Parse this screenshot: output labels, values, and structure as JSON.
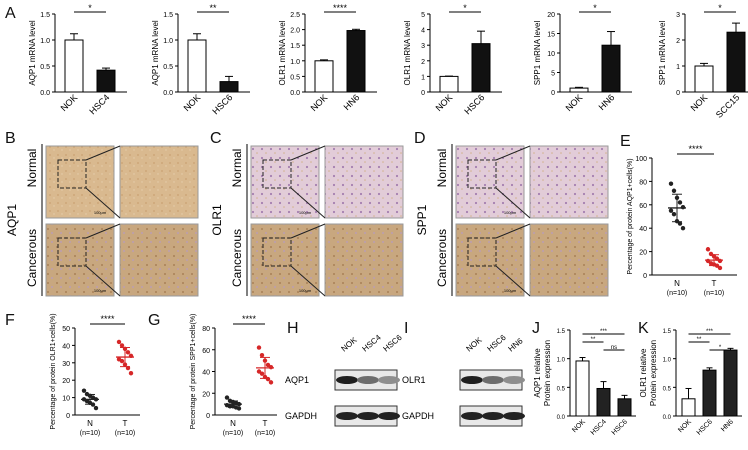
{
  "panels": {
    "A": "A",
    "B": "B",
    "C": "C",
    "D": "D",
    "E": "E",
    "F": "F",
    "G": "G",
    "H": "H",
    "I": "I",
    "J": "J",
    "K": "K"
  },
  "bar_charts_A": [
    {
      "ylabel": "AQP1 mRNA level",
      "yticks": [
        "0.0",
        "0.5",
        "1.0",
        "1.5"
      ],
      "ymax": 1.5,
      "categories": [
        "NOK",
        "HSC4"
      ],
      "values": [
        1.0,
        0.42
      ],
      "errors": [
        0.12,
        0.04
      ],
      "sig": "*"
    },
    {
      "ylabel": "AQP1 mRNA level",
      "yticks": [
        "0.0",
        "0.5",
        "1.0",
        "1.5"
      ],
      "ymax": 1.5,
      "categories": [
        "NOK",
        "HSC6"
      ],
      "values": [
        1.0,
        0.2
      ],
      "errors": [
        0.12,
        0.1
      ],
      "sig": "**"
    },
    {
      "ylabel": "OLR1 mRNA level",
      "yticks": [
        "0.0",
        "0.5",
        "1.0",
        "1.5",
        "2.0",
        "2.5"
      ],
      "ymax": 2.5,
      "categories": [
        "NOK",
        "HN6"
      ],
      "values": [
        1.0,
        1.97
      ],
      "errors": [
        0.03,
        0.04
      ],
      "sig": "****"
    },
    {
      "ylabel": "OLR1 mRNA level",
      "yticks": [
        "0",
        "1",
        "2",
        "3",
        "4",
        "5"
      ],
      "ymax": 5,
      "categories": [
        "NOK",
        "HSC6"
      ],
      "values": [
        1.0,
        3.1
      ],
      "errors": [
        0.02,
        0.8
      ],
      "sig": "*"
    },
    {
      "ylabel": "SPP1 mRNA level",
      "yticks": [
        "0",
        "5",
        "10",
        "15",
        "20"
      ],
      "ymax": 20,
      "categories": [
        "NOK",
        "HN6"
      ],
      "values": [
        1.0,
        12.0
      ],
      "errors": [
        0.2,
        3.5
      ],
      "sig": "*"
    },
    {
      "ylabel": "SPP1 mRNA level",
      "yticks": [
        "0",
        "1",
        "2",
        "3"
      ],
      "ymax": 3,
      "categories": [
        "NOK",
        "SCC15"
      ],
      "values": [
        1.0,
        2.3
      ],
      "errors": [
        0.1,
        0.35
      ],
      "sig": "*"
    }
  ],
  "ihc": {
    "B": {
      "marker": "AQP1"
    },
    "C": {
      "marker": "OLR1"
    },
    "D": {
      "marker": "SPP1"
    },
    "row_normal": "Normal",
    "row_cancerous": "Cancerous",
    "scale": "100μm"
  },
  "scatter_charts": [
    {
      "panel": "E",
      "ylabel": "Percentage of protein AQP1+cells(%)",
      "yticks": [
        "0",
        "20",
        "40",
        "60",
        "80",
        "100"
      ],
      "ymax": 100,
      "groups": [
        "N",
        "T"
      ],
      "ns": [
        "(n=10)",
        "(n=10)"
      ],
      "sig": "****",
      "N": [
        78,
        72,
        66,
        62,
        58,
        55,
        52,
        46,
        44,
        40
      ],
      "T": [
        22,
        18,
        16,
        14,
        12,
        12,
        10,
        9,
        8,
        6
      ],
      "colors": [
        "#222222",
        "#d62728"
      ]
    },
    {
      "panel": "F",
      "ylabel": "Percentage of protein OLR1+cells(%)",
      "yticks": [
        "0",
        "10",
        "20",
        "30",
        "40",
        "50"
      ],
      "ymax": 50,
      "groups": [
        "N",
        "T"
      ],
      "ns": [
        "(n=10)",
        "(n=10)"
      ],
      "sig": "****",
      "N": [
        14,
        12,
        11,
        10,
        9,
        9,
        8,
        7,
        6,
        4
      ],
      "T": [
        42,
        40,
        38,
        36,
        34,
        32,
        31,
        29,
        27,
        24
      ],
      "colors": [
        "#222222",
        "#d62728"
      ]
    },
    {
      "panel": "G",
      "ylabel": "Percentage of protein SPP1+cells(%)",
      "yticks": [
        "0",
        "20",
        "40",
        "60",
        "80"
      ],
      "ymax": 80,
      "groups": [
        "N",
        "T"
      ],
      "ns": [
        "(n=10)",
        "(n=10)"
      ],
      "sig": "****",
      "N": [
        16,
        13,
        12,
        11,
        10,
        9,
        8,
        8,
        7,
        6
      ],
      "T": [
        62,
        55,
        50,
        46,
        44,
        40,
        38,
        35,
        33,
        30
      ],
      "colors": [
        "#222222",
        "#d62728"
      ]
    }
  ],
  "western_H": {
    "lanes": [
      "NOK",
      "HSC4",
      "HSC6"
    ],
    "proteins": [
      "AQP1",
      "GAPDH"
    ]
  },
  "western_I": {
    "lanes": [
      "NOK",
      "HSC6",
      "HN6"
    ],
    "proteins": [
      "OLR1",
      "GAPDH"
    ]
  },
  "chart_data": [
    {
      "type": "bar",
      "panel": "J",
      "ylabel": "AQP1 relative\nProtein expression",
      "ylim": [
        0,
        1.5
      ],
      "yticks": [
        "0.0",
        "0.5",
        "1.0",
        "1.5"
      ],
      "categories": [
        "NOK",
        "HSC4",
        "HSC6"
      ],
      "values": [
        0.96,
        0.48,
        0.3
      ],
      "errors": [
        0.06,
        0.12,
        0.06
      ],
      "colors": [
        "#ffffff",
        "#222222",
        "#222222"
      ],
      "sig": [
        "**",
        "***",
        "ns"
      ]
    },
    {
      "type": "bar",
      "panel": "K",
      "ylabel": "OLR1 relative\nProtein expression",
      "ylim": [
        0,
        1.5
      ],
      "yticks": [
        "0.0",
        "0.5",
        "1.0",
        "1.5"
      ],
      "categories": [
        "NOK",
        "HSC6",
        "HN6"
      ],
      "values": [
        0.3,
        0.8,
        1.15
      ],
      "errors": [
        0.18,
        0.04,
        0.03
      ],
      "colors": [
        "#ffffff",
        "#222222",
        "#222222"
      ],
      "sig": [
        "**",
        "***",
        "*"
      ]
    }
  ]
}
